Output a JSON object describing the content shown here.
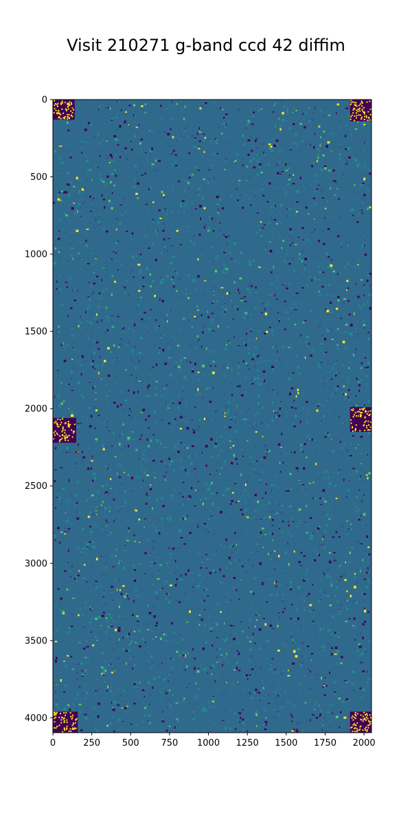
{
  "chart_data": {
    "type": "heatmap",
    "title": "Visit 210271 g-band ccd 42 diffim",
    "xlabel": "",
    "ylabel": "",
    "xlim": [
      0,
      2048
    ],
    "ylim": [
      4096,
      0
    ],
    "x_ticks": [
      0,
      250,
      500,
      750,
      1000,
      1250,
      1500,
      1750,
      2000
    ],
    "y_ticks": [
      0,
      500,
      1000,
      1500,
      2000,
      2500,
      3000,
      3500,
      4000
    ],
    "colormap": "viridis",
    "colors": {
      "low": "#440154",
      "mid": "#2c7e8e",
      "high": "#fde725",
      "base": "#2f6a8d"
    },
    "saturated_regions": [
      {
        "x": [
          0,
          140
        ],
        "y": [
          0,
          130
        ]
      },
      {
        "x": [
          1910,
          2048
        ],
        "y": [
          0,
          140
        ]
      },
      {
        "x": [
          0,
          150
        ],
        "y": [
          2060,
          2220
        ]
      },
      {
        "x": [
          1910,
          2048
        ],
        "y": [
          1990,
          2150
        ]
      },
      {
        "x": [
          0,
          160
        ],
        "y": [
          3960,
          4096
        ]
      },
      {
        "x": [
          1910,
          2048
        ],
        "y": [
          3960,
          4096
        ]
      }
    ]
  }
}
